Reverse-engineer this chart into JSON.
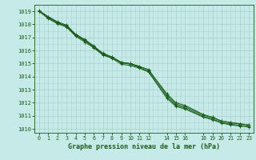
{
  "title": "Graphe pression niveau de la mer (hPa)",
  "background_color": "#c6eae8",
  "grid_color": "#aed4d0",
  "line_color": "#1a5c1a",
  "marker_color": "#1a5c1a",
  "xlim": [
    -0.5,
    23.5
  ],
  "ylim": [
    1009.7,
    1019.5
  ],
  "xtick_vals": [
    0,
    1,
    2,
    3,
    4,
    5,
    6,
    7,
    8,
    9,
    10,
    11,
    12,
    14,
    15,
    16,
    18,
    19,
    20,
    21,
    22,
    23
  ],
  "xtick_labels": [
    "0",
    "1",
    "2",
    "3",
    "4",
    "5",
    "6",
    "7",
    "8",
    "9",
    "10",
    "11",
    "12",
    "14",
    "15",
    "16",
    "18",
    "19",
    "20",
    "21",
    "22",
    "23"
  ],
  "ytick_vals": [
    1010,
    1011,
    1012,
    1013,
    1014,
    1015,
    1016,
    1017,
    1018,
    1019
  ],
  "ytick_labels": [
    "1010",
    "1011",
    "1012",
    "1013",
    "1014",
    "1015",
    "1016",
    "1017",
    "1018",
    "1019"
  ],
  "series_x": [
    0,
    1,
    2,
    3,
    4,
    5,
    6,
    7,
    8,
    9,
    10,
    11,
    12,
    14,
    15,
    16,
    18,
    19,
    20,
    21,
    22,
    23
  ],
  "series": [
    [
      1019.0,
      1018.5,
      1018.1,
      1017.9,
      1017.2,
      1016.8,
      1016.3,
      1015.8,
      1015.5,
      1015.1,
      1015.0,
      1014.8,
      1014.5,
      1012.7,
      1012.0,
      1011.8,
      1011.1,
      1010.9,
      1010.6,
      1010.5,
      1010.4,
      1010.3
    ],
    [
      1019.0,
      1018.55,
      1018.15,
      1017.85,
      1017.15,
      1016.75,
      1016.25,
      1015.7,
      1015.45,
      1015.05,
      1014.95,
      1014.7,
      1014.4,
      1012.45,
      1011.8,
      1011.6,
      1010.95,
      1010.75,
      1010.5,
      1010.35,
      1010.28,
      1010.2
    ],
    [
      1019.05,
      1018.6,
      1018.2,
      1017.95,
      1017.25,
      1016.85,
      1016.35,
      1015.75,
      1015.5,
      1015.1,
      1015.0,
      1014.75,
      1014.55,
      1012.6,
      1011.9,
      1011.7,
      1011.05,
      1010.85,
      1010.6,
      1010.45,
      1010.38,
      1010.3
    ],
    [
      1019.0,
      1018.45,
      1018.05,
      1017.8,
      1017.1,
      1016.65,
      1016.2,
      1015.65,
      1015.4,
      1014.95,
      1014.85,
      1014.65,
      1014.35,
      1012.35,
      1011.72,
      1011.52,
      1010.9,
      1010.7,
      1010.45,
      1010.3,
      1010.22,
      1010.15
    ]
  ]
}
